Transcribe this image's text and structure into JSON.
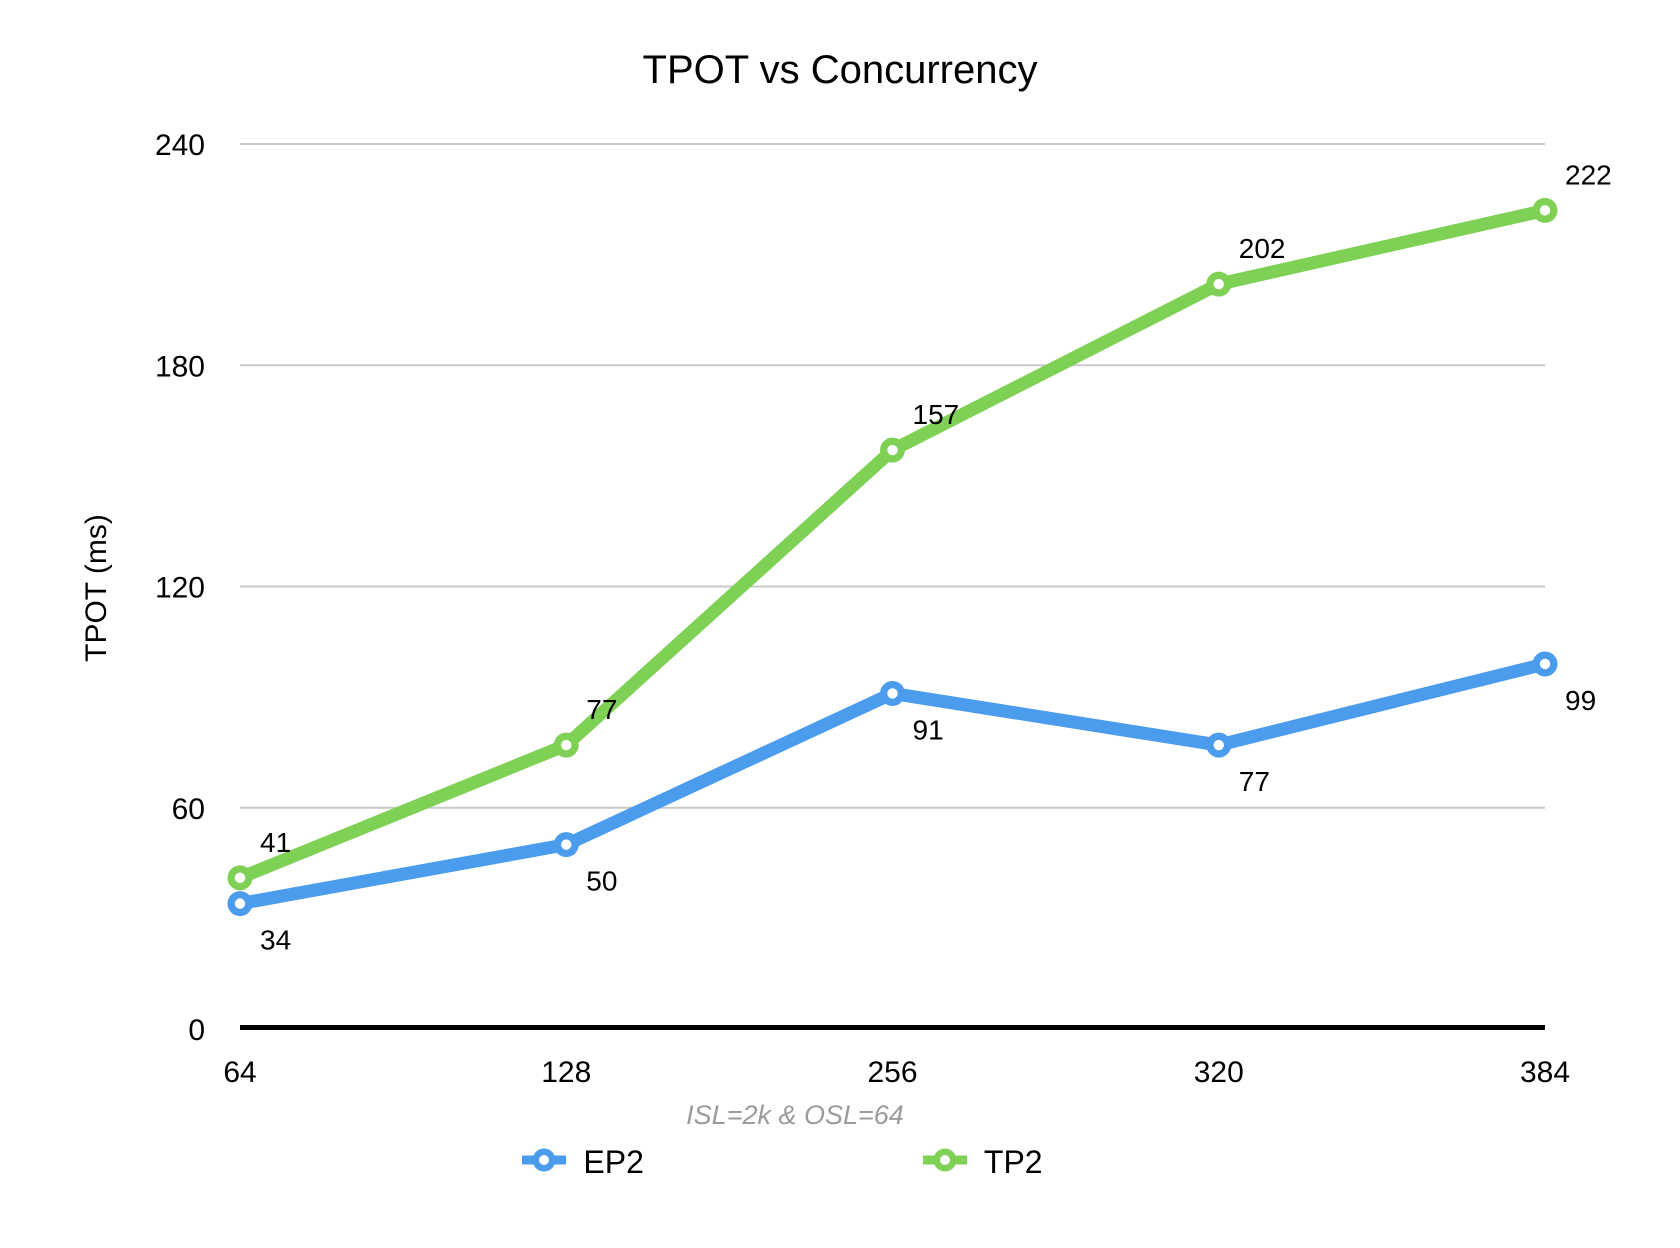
{
  "chart": {
    "title": "TPOT vs Concurrency",
    "subtitle": "ISL=2k & OSL=64",
    "y_axis_title": "TPOT (ms)",
    "colors": {
      "ep2_blue": "#4B9CED",
      "tp2_green": "#7ED155",
      "gridline": "#C9C9C9",
      "axis_line": "#000000",
      "subtitle_text": "#9B9B9B",
      "label_text": "#000000"
    }
  },
  "chart_data": {
    "type": "line",
    "title": "TPOT vs Concurrency",
    "xlabel": "ISL=2k & OSL=64",
    "ylabel": "TPOT (ms)",
    "categories": [
      "64",
      "128",
      "256",
      "320",
      "384"
    ],
    "series": [
      {
        "name": "EP2",
        "color": "#4B9CED",
        "values": [
          34,
          50,
          91,
          77,
          99
        ],
        "label_side": "below"
      },
      {
        "name": "TP2",
        "color": "#7ED155",
        "values": [
          41,
          77,
          157,
          202,
          222
        ],
        "label_side": "above"
      }
    ],
    "ylim": [
      0,
      240
    ],
    "yticks": [
      0,
      60,
      120,
      180,
      240
    ],
    "grid": true,
    "legend_position": "bottom",
    "marker": "ring"
  }
}
